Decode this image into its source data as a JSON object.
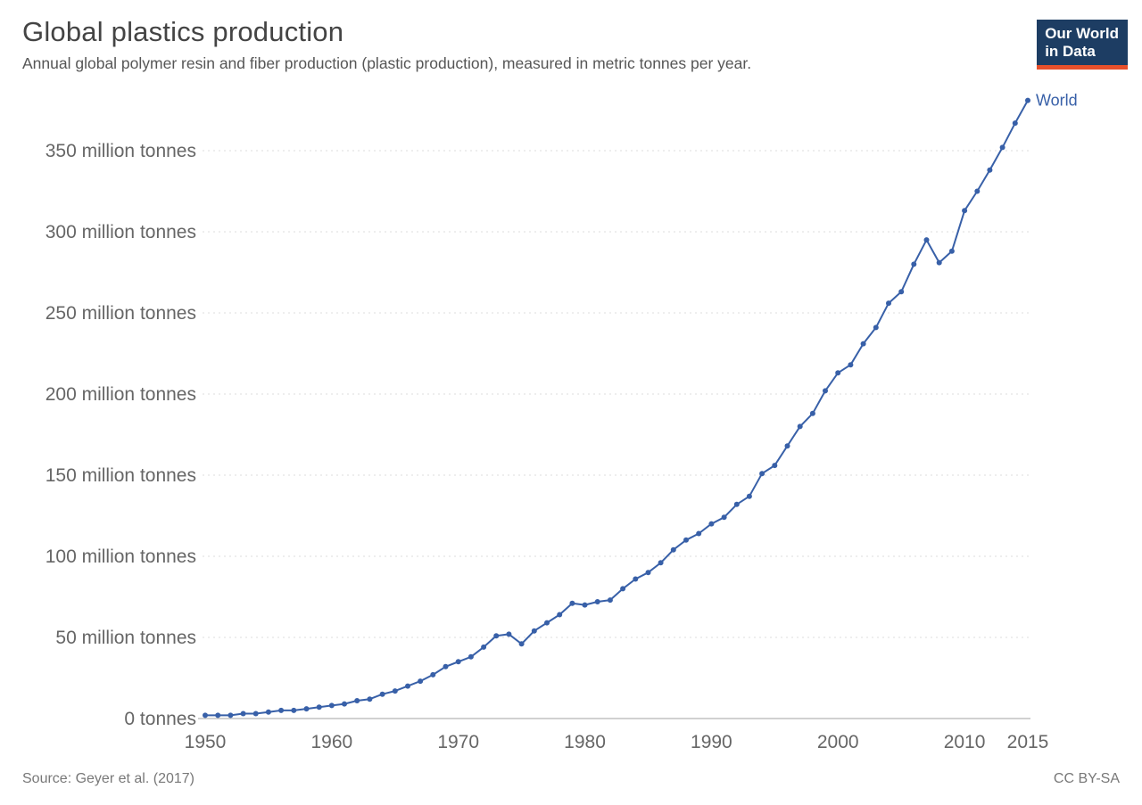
{
  "header": {
    "title": "Global plastics production",
    "subtitle": "Annual global polymer resin and fiber production (plastic production), measured in metric tonnes per year."
  },
  "logo": {
    "line1": "Our World",
    "line2": "in Data",
    "bg_color": "#1d3d63",
    "accent_color": "#e8502b"
  },
  "chart_data": {
    "type": "line",
    "title": "Global plastics production",
    "xlabel": "",
    "ylabel": "",
    "unit": "million tonnes per year",
    "grid": true,
    "legend_position": "end-of-line",
    "x": [
      1950,
      1951,
      1952,
      1953,
      1954,
      1955,
      1956,
      1957,
      1958,
      1959,
      1960,
      1961,
      1962,
      1963,
      1964,
      1965,
      1966,
      1967,
      1968,
      1969,
      1970,
      1971,
      1972,
      1973,
      1974,
      1975,
      1976,
      1977,
      1978,
      1979,
      1980,
      1981,
      1982,
      1983,
      1984,
      1985,
      1986,
      1987,
      1988,
      1989,
      1990,
      1991,
      1992,
      1993,
      1994,
      1995,
      1996,
      1997,
      1998,
      1999,
      2000,
      2001,
      2002,
      2003,
      2004,
      2005,
      2006,
      2007,
      2008,
      2009,
      2010,
      2011,
      2012,
      2013,
      2014,
      2015
    ],
    "series": [
      {
        "name": "World",
        "color": "#3860a8",
        "values": [
          2,
          2,
          2,
          3,
          3,
          4,
          5,
          5,
          6,
          7,
          8,
          9,
          11,
          12,
          15,
          17,
          20,
          23,
          27,
          32,
          35,
          38,
          44,
          51,
          52,
          46,
          54,
          59,
          64,
          71,
          70,
          72,
          73,
          80,
          86,
          90,
          96,
          104,
          110,
          114,
          120,
          124,
          132,
          137,
          151,
          156,
          168,
          180,
          188,
          202,
          213,
          218,
          231,
          241,
          256,
          263,
          280,
          295,
          281,
          288,
          313,
          325,
          338,
          352,
          367,
          381
        ]
      }
    ],
    "ylim": [
      0,
      385
    ],
    "xlim": [
      1950,
      2015
    ],
    "ytick_values": [
      0,
      50,
      100,
      150,
      200,
      250,
      300,
      350
    ],
    "ytick_labels": [
      "0 tonnes",
      "50 million tonnes",
      "100 million tonnes",
      "150 million tonnes",
      "200 million tonnes",
      "250 million tonnes",
      "300 million tonnes",
      "350 million tonnes"
    ],
    "xtick_values": [
      1950,
      1960,
      1970,
      1980,
      1990,
      2000,
      2010,
      2015
    ],
    "xtick_labels": [
      "1950",
      "1960",
      "1970",
      "1980",
      "1990",
      "2000",
      "2010",
      "2015"
    ]
  },
  "footer": {
    "source": "Source: Geyer et al. (2017)",
    "license": "CC BY-SA"
  }
}
